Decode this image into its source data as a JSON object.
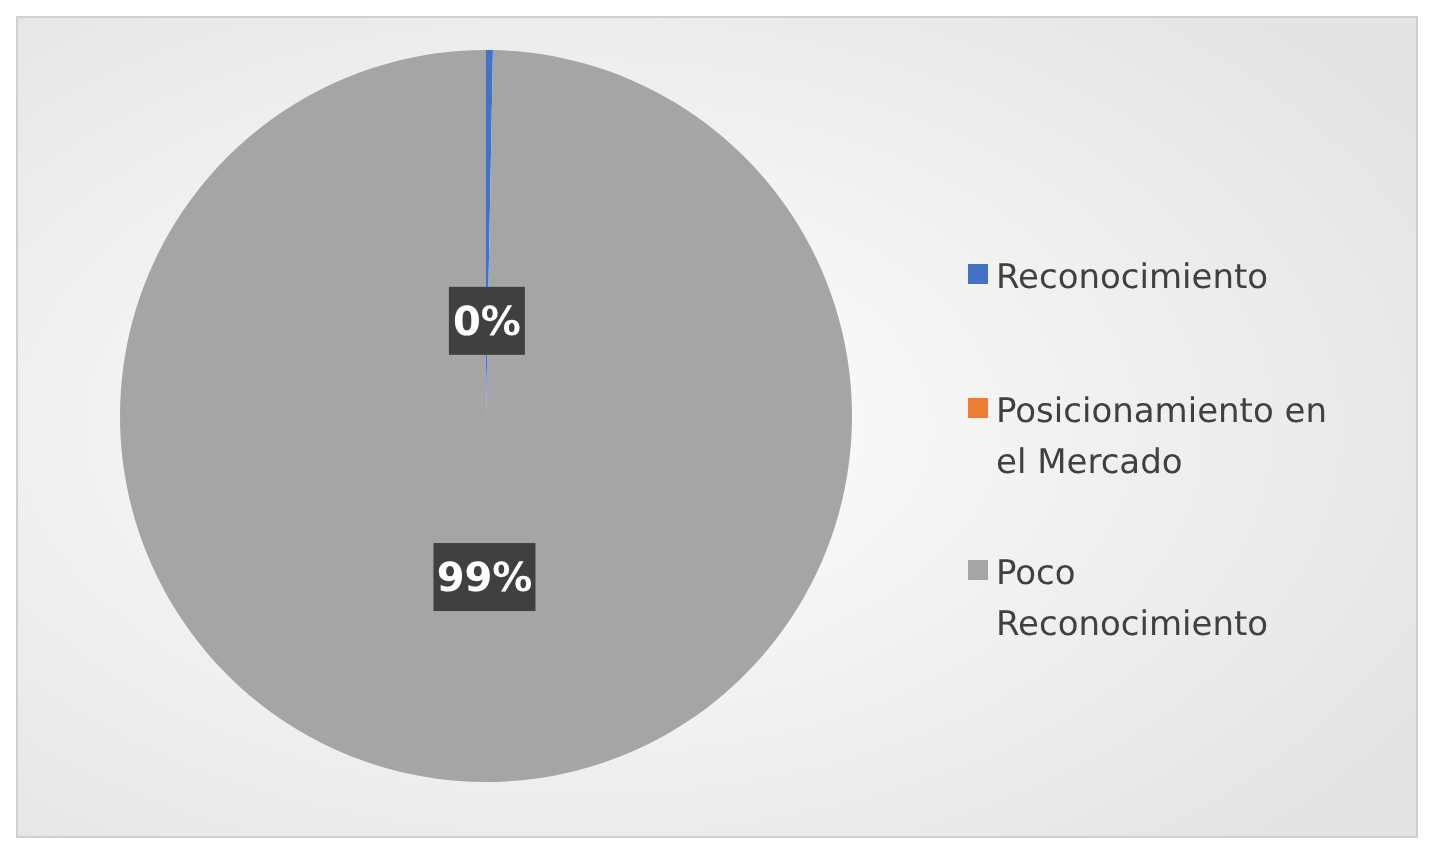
{
  "chart_data": {
    "type": "pie",
    "categories": [
      "Reconocimiento",
      "Posicionamiento en el Mercado",
      "Poco Reconocimiento"
    ],
    "values": [
      0.3,
      0,
      99
    ],
    "value_labels": [
      "0%",
      null,
      "99%"
    ],
    "colors": [
      "#4472c4",
      "#ed7d31",
      "#a5a5a5"
    ],
    "legend": "right"
  }
}
